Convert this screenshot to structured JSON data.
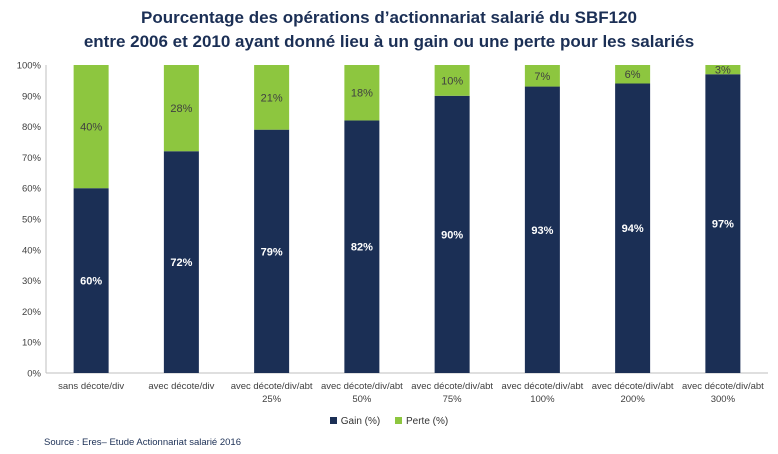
{
  "title_line1": "Pourcentage des opérations d’actionnariat salarié du SBF120",
  "title_line2": "entre 2006 et 2010 ayant donné lieu à un gain ou une perte pour les salariés",
  "source": "Source : Eres– Etude Actionnariat salarié 2016",
  "colors": {
    "gain": "#1b2f55",
    "perte": "#8dc63f",
    "axis": "#bfbfbf",
    "text": "#404040"
  },
  "chart_data": {
    "type": "bar",
    "stacked": true,
    "categories": [
      [
        "sans décote/div"
      ],
      [
        "avec décote/div"
      ],
      [
        "avec décote/div/abt",
        "25%"
      ],
      [
        "avec décote/div/abt",
        "50%"
      ],
      [
        "avec décote/div/abt",
        "75%"
      ],
      [
        "avec décote/div/abt",
        "100%"
      ],
      [
        "avec décote/div/abt",
        "200%"
      ],
      [
        "avec décote/div/abt",
        "300%"
      ]
    ],
    "series": [
      {
        "name": "Gain (%)",
        "values": [
          60,
          72,
          79,
          82,
          90,
          93,
          94,
          97
        ],
        "labels": [
          "60%",
          "72%",
          "79%",
          "82%",
          "90%",
          "93%",
          "94%",
          "97%"
        ]
      },
      {
        "name": "Perte (%)",
        "values": [
          40,
          28,
          21,
          18,
          10,
          7,
          6,
          3
        ],
        "labels": [
          "40%",
          "28%",
          "21%",
          "18%",
          "10%",
          "7%",
          "6%",
          "3%"
        ]
      }
    ],
    "y_ticks": [
      "0%",
      "10%",
      "20%",
      "30%",
      "40%",
      "50%",
      "60%",
      "70%",
      "80%",
      "90%",
      "100%"
    ],
    "ylim": [
      0,
      100
    ],
    "legend_position": "bottom",
    "grid": false
  }
}
